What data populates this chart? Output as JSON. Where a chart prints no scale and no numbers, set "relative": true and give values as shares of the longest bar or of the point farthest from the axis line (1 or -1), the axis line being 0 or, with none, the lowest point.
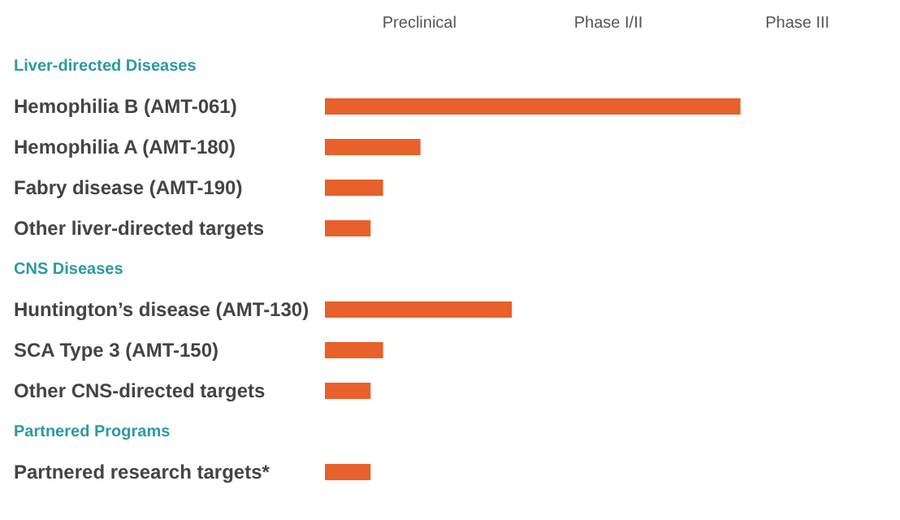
{
  "chart_data": {
    "type": "bar",
    "orientation": "horizontal",
    "relative": true,
    "categories": [
      "Liver-directed Diseases",
      "Hemophilia B  (AMT-061)",
      "Hemophilia A  (AMT-180)",
      "Fabry disease  (AMT-190)",
      "Other liver-directed targets",
      "CNS Diseases",
      "Huntington’s disease  (AMT-130)",
      "SCA Type 3  (AMT-150)",
      "Other CNS-directed targets",
      "Partnered Programs",
      "Partnered research targets*"
    ],
    "values": [
      null,
      1,
      0.23,
      0.14,
      0.11,
      null,
      0.45,
      0.14,
      0.11,
      null,
      0.11
    ],
    "color": "#e8602a",
    "annotations": [
      "Preclinical",
      "Phase I/II",
      "Phase III"
    ]
  }
}
